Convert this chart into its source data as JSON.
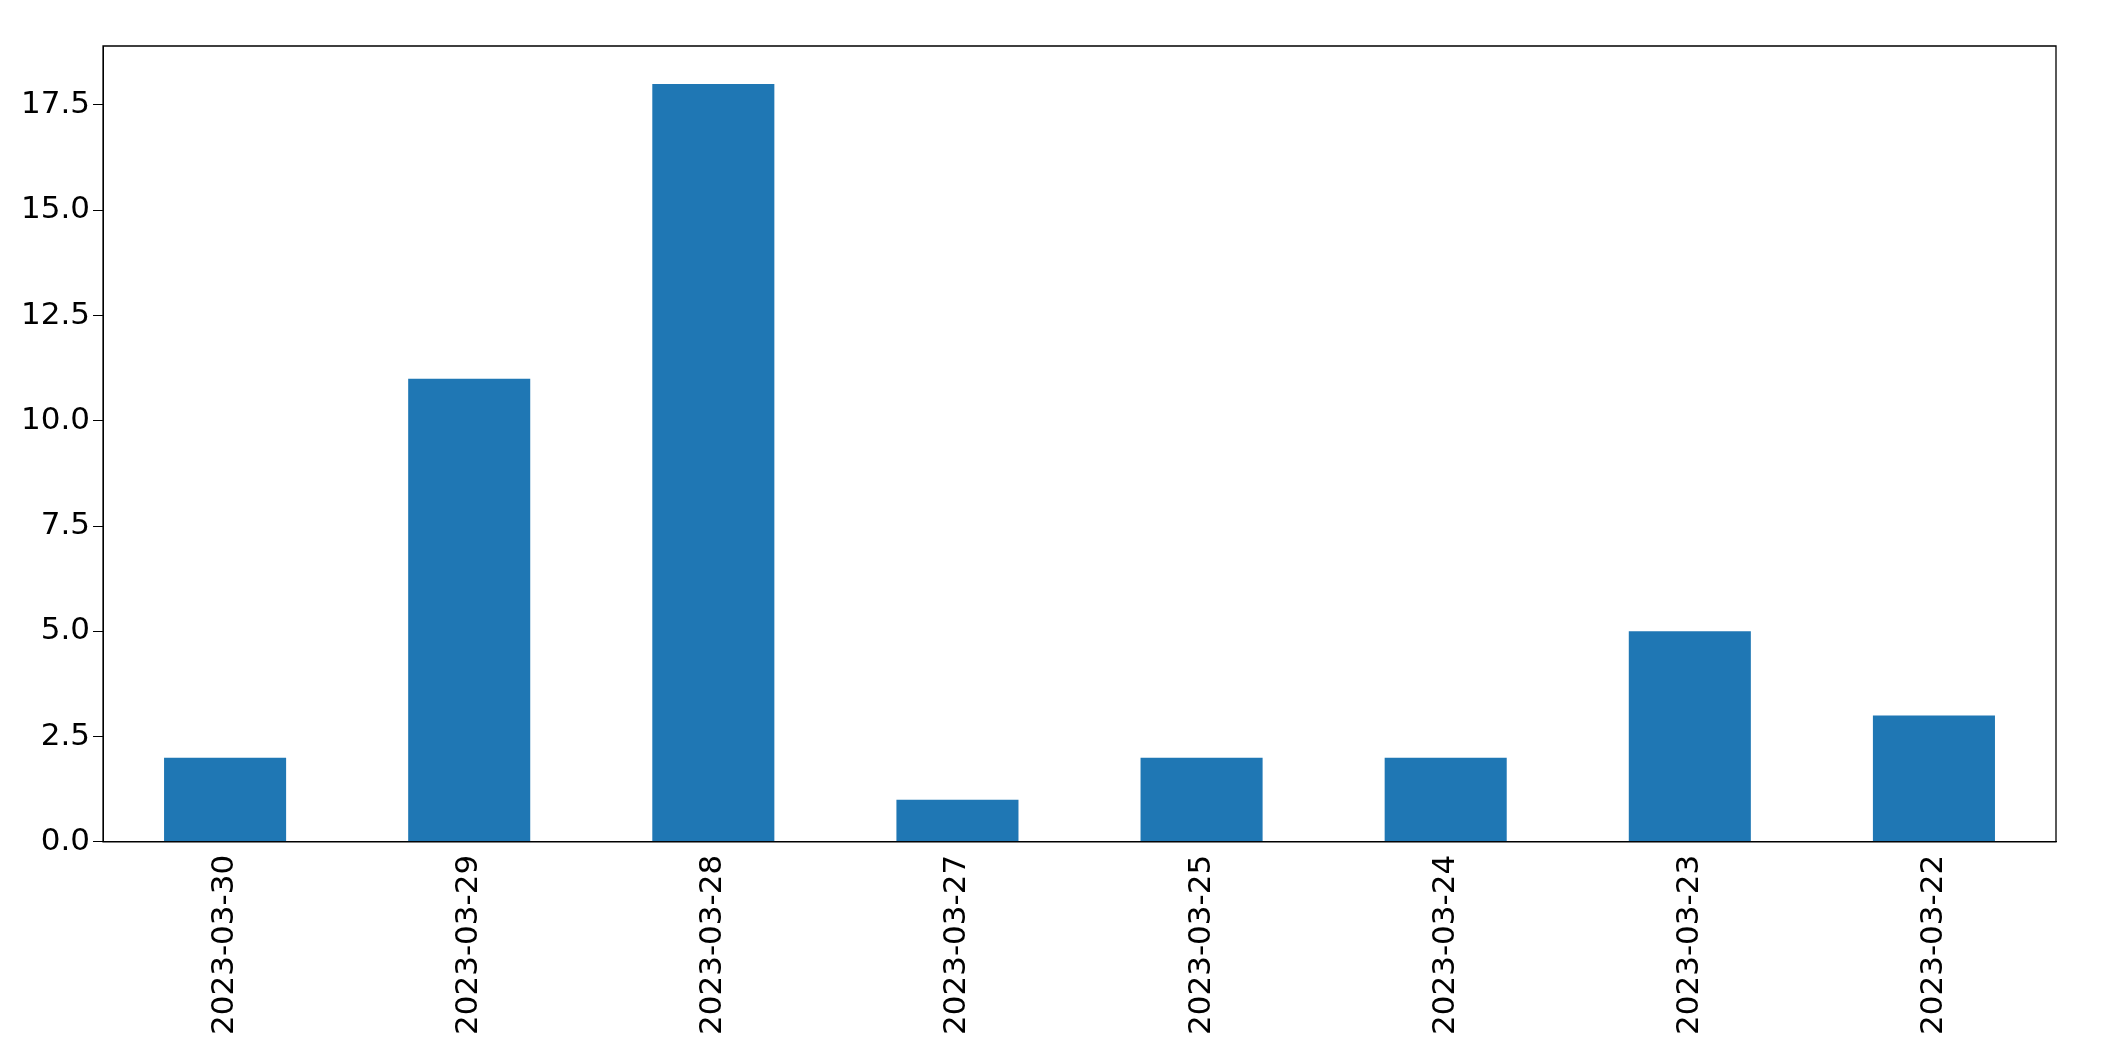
{
  "chart_data": {
    "type": "bar",
    "categories": [
      "2023-03-30",
      "2023-03-29",
      "2023-03-28",
      "2023-03-27",
      "2023-03-25",
      "2023-03-24",
      "2023-03-23",
      "2023-03-22"
    ],
    "values": [
      2,
      11,
      18,
      1,
      2,
      2,
      5,
      3
    ],
    "color": "#1f77b4",
    "ylim": [
      0,
      18.9
    ],
    "yticks": [
      {
        "value": 0,
        "label": "0.0"
      },
      2.5,
      {
        "value": 5,
        "label": "5.0"
      },
      7.5,
      {
        "value": 10,
        "label": "10.0"
      },
      12.5,
      {
        "value": 15,
        "label": "15.0"
      },
      17.5
    ],
    "grid": false,
    "legend": false
  }
}
